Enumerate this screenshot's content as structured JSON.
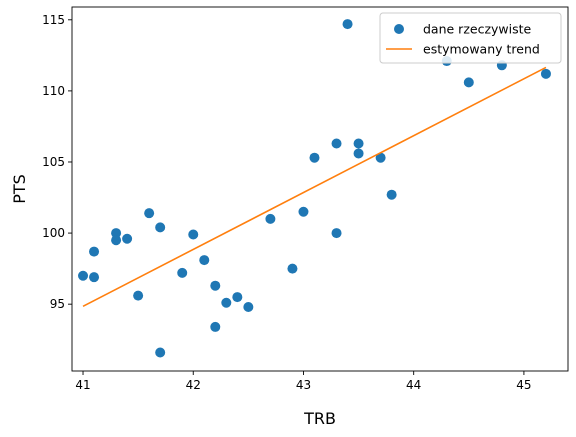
{
  "chart_data": {
    "type": "scatter",
    "xlabel": "TRB",
    "ylabel": "PTS",
    "xlim": [
      40.9,
      45.4
    ],
    "ylim": [
      90.3,
      115.9
    ],
    "xticks": [
      "41",
      "42",
      "43",
      "44",
      "45"
    ],
    "yticks": [
      "95",
      "100",
      "105",
      "110",
      "115"
    ],
    "grid": false,
    "legend_position": "top-right",
    "series": [
      {
        "name": "dane rzeczywiste",
        "kind": "scatter",
        "color": "#1f77b4",
        "points": [
          [
            41.0,
            97.0
          ],
          [
            41.1,
            98.7
          ],
          [
            41.1,
            96.9
          ],
          [
            41.3,
            100.0
          ],
          [
            41.3,
            99.5
          ],
          [
            41.4,
            99.6
          ],
          [
            41.5,
            95.6
          ],
          [
            41.6,
            101.4
          ],
          [
            41.7,
            100.4
          ],
          [
            41.7,
            91.6
          ],
          [
            41.9,
            97.2
          ],
          [
            42.0,
            99.9
          ],
          [
            42.1,
            98.1
          ],
          [
            42.2,
            96.3
          ],
          [
            42.2,
            93.4
          ],
          [
            42.3,
            95.1
          ],
          [
            42.4,
            95.5
          ],
          [
            42.5,
            94.8
          ],
          [
            42.7,
            101.0
          ],
          [
            42.9,
            97.5
          ],
          [
            43.0,
            101.5
          ],
          [
            43.1,
            105.3
          ],
          [
            43.3,
            106.3
          ],
          [
            43.3,
            100.0
          ],
          [
            43.4,
            114.7
          ],
          [
            43.5,
            106.3
          ],
          [
            43.5,
            105.6
          ],
          [
            43.7,
            105.3
          ],
          [
            43.8,
            102.7
          ],
          [
            44.3,
            112.1
          ],
          [
            44.5,
            110.6
          ],
          [
            44.8,
            111.8
          ],
          [
            45.2,
            111.2
          ]
        ]
      },
      {
        "name": "estymowany trend",
        "kind": "line",
        "color": "#ff7f0e",
        "points": [
          [
            41.0,
            94.85
          ],
          [
            45.2,
            111.65
          ]
        ]
      }
    ]
  }
}
